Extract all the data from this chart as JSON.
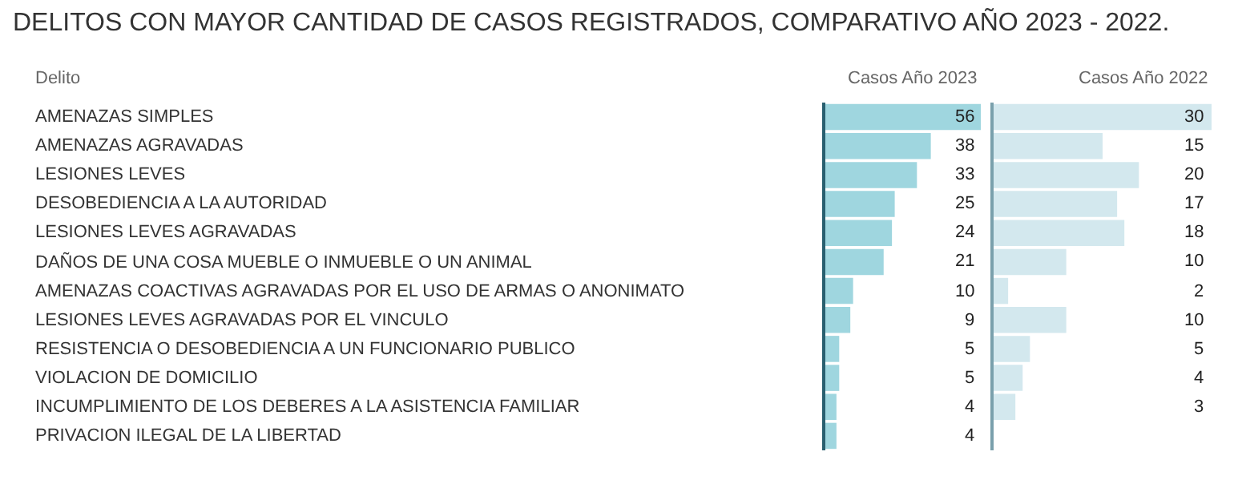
{
  "chart_data": [
    {
      "type": "bar",
      "orientation": "horizontal",
      "title": "DELITOS CON MAYOR CANTIDAD DE CASOS REGISTRADOS, COMPARATIVO AÑO 2023 - 2022.",
      "ylabel": "Delito",
      "categories": [
        "AMENAZAS SIMPLES",
        "AMENAZAS AGRAVADAS",
        "LESIONES LEVES",
        "DESOBEDIENCIA A LA AUTORIDAD",
        "LESIONES LEVES AGRAVADAS",
        "DAÑOS DE UNA COSA MUEBLE O INMUEBLE O UN ANIMAL",
        "AMENAZAS COACTIVAS AGRAVADAS POR EL USO DE ARMAS O ANONIMATO",
        "LESIONES LEVES AGRAVADAS POR EL VINCULO",
        "RESISTENCIA O DESOBEDIENCIA A UN FUNCIONARIO PUBLICO",
        "VIOLACION DE DOMICILIO",
        "INCUMPLIMIENTO DE LOS DEBERES A LA ASISTENCIA FAMILIAR",
        "PRIVACION ILEGAL DE LA LIBERTAD"
      ],
      "series": [
        {
          "name": "Casos Año 2023",
          "color": "#9fd6df",
          "values": [
            56,
            38,
            33,
            25,
            24,
            21,
            10,
            9,
            5,
            5,
            4,
            4
          ]
        }
      ],
      "data_labels": true,
      "legend": false
    },
    {
      "type": "bar",
      "orientation": "horizontal",
      "tick_labels": false,
      "categories": [
        "AMENAZAS SIMPLES",
        "AMENAZAS AGRAVADAS",
        "LESIONES LEVES",
        "DESOBEDIENCIA A LA AUTORIDAD",
        "LESIONES LEVES AGRAVADAS",
        "DAÑOS DE UNA COSA MUEBLE O INMUEBLE O UN ANIMAL",
        "AMENAZAS COACTIVAS AGRAVADAS POR EL USO DE ARMAS O ANONIMATO",
        "LESIONES LEVES AGRAVADAS POR EL VINCULO",
        "RESISTENCIA O DESOBEDIENCIA A UN FUNCIONARIO PUBLICO",
        "VIOLACION DE DOMICILIO",
        "INCUMPLIMIENTO DE LOS DEBERES A LA ASISTENCIA FAMILIAR",
        "PRIVACION ILEGAL DE LA LIBERTAD"
      ],
      "series": [
        {
          "name": "Casos Año 2022",
          "color": "#d3e8ee",
          "values": [
            30,
            15,
            20,
            17,
            18,
            10,
            2,
            10,
            5,
            4,
            3,
            null
          ]
        }
      ],
      "data_labels": true,
      "legend": false
    }
  ]
}
